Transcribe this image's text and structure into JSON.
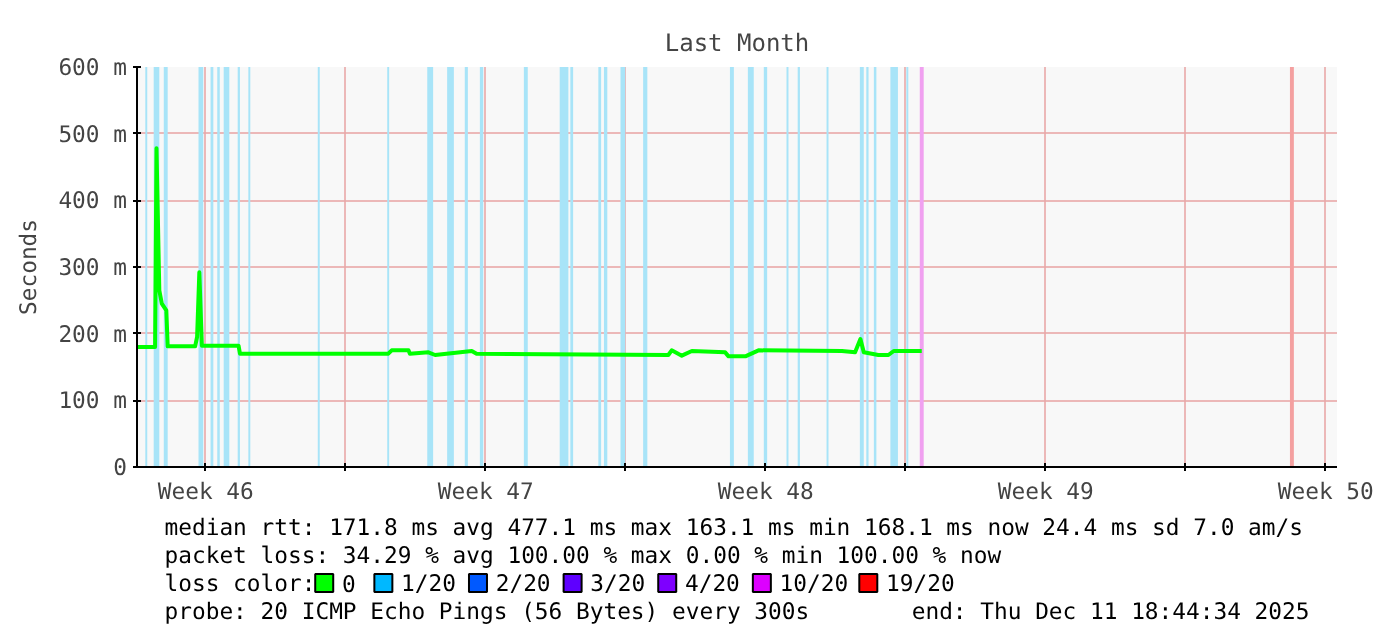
{
  "chart_data": {
    "type": "line",
    "title": "Last Month",
    "ylabel": "Seconds",
    "legend_title": "loss color:",
    "legend": "bottom",
    "grid": true,
    "xlim": [
      "2025-11-11T18:44",
      "2025-12-11T18:44"
    ],
    "ylim": [
      0,
      600
    ],
    "xticks": [
      {
        "value": "2025-11-13T12:00",
        "label": "Week 46"
      },
      {
        "value": "2025-11-17",
        "label": null
      },
      {
        "value": "2025-11-20T12:00",
        "label": "Week 47"
      },
      {
        "value": "2025-11-24",
        "label": null
      },
      {
        "value": "2025-11-27T12:00",
        "label": "Week 48"
      },
      {
        "value": "2025-12-01",
        "label": null
      },
      {
        "value": "2025-12-04T12:00",
        "label": "Week 49"
      },
      {
        "value": "2025-12-08",
        "label": null
      },
      {
        "value": "2025-12-11T12:00",
        "label": "Week 50"
      }
    ],
    "yticks": [
      0,
      {
        "value": 100,
        "label": "100 m"
      },
      {
        "value": 200,
        "label": "200 m"
      },
      {
        "value": 300,
        "label": "300 m"
      },
      {
        "value": 400,
        "label": "400 m"
      },
      {
        "value": 500,
        "label": "500 m"
      },
      {
        "value": 600,
        "label": "600 m"
      }
    ],
    "series": [
      {
        "name": "0",
        "color": "#00ff00",
        "x": [
          "2025-11-11T18:50",
          "2025-11-12T05:35",
          "2025-11-12T06:26",
          "2025-11-12T08:07",
          "2025-11-12T09:37",
          "2025-11-12T12:19",
          "2025-11-12T13:09",
          "2025-11-13T05:37",
          "2025-11-13T06:47",
          "2025-11-13T08:08",
          "2025-11-13T09:39",
          "2025-11-14T07:40",
          "2025-11-14T08:30",
          "2025-11-18T01:32",
          "2025-11-18T03:33",
          "2025-11-18T13:38",
          "2025-11-18T14:28",
          "2025-11-19T01:34",
          "2025-11-19T05:35",
          "2025-11-20T03:36",
          "2025-11-20T06:28",
          "2025-11-25T01:32",
          "2025-11-25T03:33",
          "2025-11-25T09:36",
          "2025-11-25T15:39",
          "2025-11-26T11:38",
          "2025-11-26T13:40",
          "2025-11-26T23:44",
          "2025-11-27T07:38",
          "2025-11-29T09:42",
          "2025-11-29T17:35",
          "2025-11-29T20:47",
          "2025-11-29T22:48",
          "2025-11-30T07:32",
          "2025-11-30T13:35",
          "2025-11-30T16:47",
          "2025-12-01T09:35"
        ],
        "values": [
          180,
          180,
          478,
          265,
          245,
          235,
          181,
          181,
          195,
          292,
          182,
          182,
          170,
          170,
          175,
          175,
          170,
          172,
          168,
          174,
          170,
          168,
          175,
          167,
          174,
          172,
          166,
          166,
          175,
          174,
          172,
          192,
          172,
          168,
          168,
          174,
          174
        ]
      },
      {
        "name": "1/20",
        "color": "#00b8ff"
      },
      {
        "name": "2/20",
        "color": "#0059ff"
      },
      {
        "name": "3/20",
        "color": "#5e00ff"
      },
      {
        "name": "4/20",
        "color": "#7e00ff"
      },
      {
        "name": "10/20",
        "color": "#dd00ff"
      },
      {
        "name": "19/20",
        "color": "#ff0000"
      }
    ],
    "bands": [
      {
        "axis": "x",
        "from": "2025-11-11T23:43",
        "to": "2025-11-12T00:53",
        "color": "#a8e4f8"
      },
      {
        "axis": "x",
        "from": "2025-11-12T04:45",
        "to": "2025-11-12T08:07",
        "color": "#a8e4f8"
      },
      {
        "axis": "x",
        "from": "2025-11-12T10:48",
        "to": "2025-11-12T13:09",
        "color": "#a8e4f8"
      },
      {
        "axis": "x",
        "from": "2025-11-13T07:38",
        "to": "2025-11-13T10:29",
        "color": "#a8e4f8"
      },
      {
        "axis": "x",
        "from": "2025-11-13T14:52",
        "to": "2025-11-13T16:32",
        "color": "#a8e4f8"
      },
      {
        "axis": "x",
        "from": "2025-11-13T18:53",
        "to": "2025-11-13T20:24",
        "color": "#a8e4f8"
      },
      {
        "axis": "x",
        "from": "2025-11-13T22:45",
        "to": "2025-11-14T02:07",
        "color": "#a8e4f8"
      },
      {
        "axis": "x",
        "from": "2025-11-14T07:09",
        "to": "2025-11-14T08:30",
        "color": "#a8e4f8"
      },
      {
        "axis": "x",
        "from": "2025-11-14T13:32",
        "to": "2025-11-14T14:43",
        "color": "#a8e4f8"
      },
      {
        "axis": "x",
        "from": "2025-11-16T07:12",
        "to": "2025-11-16T08:23",
        "color": "#a8e4f8"
      },
      {
        "axis": "x",
        "from": "2025-11-18T00:52",
        "to": "2025-11-18T02:02",
        "color": "#a8e4f8"
      },
      {
        "axis": "x",
        "from": "2025-11-19T00:53",
        "to": "2025-11-19T04:25",
        "color": "#a8e4f8"
      },
      {
        "axis": "x",
        "from": "2025-11-19T12:49",
        "to": "2025-11-19T16:51",
        "color": "#a8e4f8"
      },
      {
        "axis": "x",
        "from": "2025-11-19T23:24",
        "to": "2025-11-20T01:15",
        "color": "#a8e4f8"
      },
      {
        "axis": "x",
        "from": "2025-11-20T08:28",
        "to": "2025-11-20T10:29",
        "color": "#a8e4f8"
      },
      {
        "axis": "x",
        "from": "2025-11-21T10:51",
        "to": "2025-11-21T13:12",
        "color": "#a8e4f8"
      },
      {
        "axis": "x",
        "from": "2025-11-22T08:21",
        "to": "2025-11-22T13:34",
        "color": "#a8e4f8"
      },
      {
        "axis": "x",
        "from": "2025-11-22T14:44",
        "to": "2025-11-22T16:25",
        "color": "#a8e4f8"
      },
      {
        "axis": "x",
        "from": "2025-11-23T07:32",
        "to": "2025-11-23T09:13",
        "color": "#a8e4f8"
      },
      {
        "axis": "x",
        "from": "2025-11-23T10:54",
        "to": "2025-11-23T12:55",
        "color": "#a8e4f8"
      },
      {
        "axis": "x",
        "from": "2025-11-23T20:49",
        "to": "2025-11-23T23:40",
        "color": "#a8e4f8"
      },
      {
        "axis": "x",
        "from": "2025-11-24T10:25",
        "to": "2025-11-24T12:56",
        "color": "#a8e4f8"
      },
      {
        "axis": "x",
        "from": "2025-11-26T14:30",
        "to": "2025-11-26T16:51",
        "color": "#a8e4f8"
      },
      {
        "axis": "x",
        "from": "2025-11-27T01:15",
        "to": "2025-11-27T04:47",
        "color": "#a8e4f8"
      },
      {
        "axis": "x",
        "from": "2025-11-27T10:49",
        "to": "2025-11-27T12:50",
        "color": "#a8e4f8"
      },
      {
        "axis": "x",
        "from": "2025-11-28T00:26",
        "to": "2025-11-28T01:37",
        "color": "#a8e4f8"
      },
      {
        "axis": "x",
        "from": "2025-11-28T07:09",
        "to": "2025-11-28T08:30",
        "color": "#a8e4f8"
      },
      {
        "axis": "x",
        "from": "2025-11-29T00:28",
        "to": "2025-11-29T01:38",
        "color": "#a8e4f8"
      },
      {
        "axis": "x",
        "from": "2025-11-29T20:27",
        "to": "2025-11-29T22:48",
        "color": "#a8e4f8"
      },
      {
        "axis": "x",
        "from": "2025-11-30T00:19",
        "to": "2025-11-30T01:40",
        "color": "#a8e4f8"
      },
      {
        "axis": "x",
        "from": "2025-11-30T04:51",
        "to": "2025-11-30T06:22",
        "color": "#a8e4f8"
      },
      {
        "axis": "x",
        "from": "2025-11-30T14:46",
        "to": "2025-11-30T19:18",
        "color": "#a8e4f8"
      },
      {
        "axis": "x",
        "from": "2025-12-01T00:20",
        "to": "2025-12-01T01:31",
        "color": "#a8e4f8"
      },
      {
        "axis": "x",
        "from": "2025-12-01T08:24",
        "to": "2025-12-01T10:45",
        "color": "#f0a0f0"
      },
      {
        "axis": "x",
        "from": "2025-12-10T14:30",
        "to": "2025-12-10T16:51",
        "color": "#f4a0a0"
      }
    ],
    "annotations": [
      "median rtt:  171.8 ms avg  477.1 ms max  163.1 ms min  168.1 ms now  24.4 ms sd  7.0   am/s",
      "packet loss: 34.29 % avg  100.00 % max  0.00 % min  100.00 % now",
      "probe:       20 ICMP Echo Pings (56 Bytes) every 300s",
      "end: Thu Dec 11 18:44:34 2025"
    ]
  }
}
